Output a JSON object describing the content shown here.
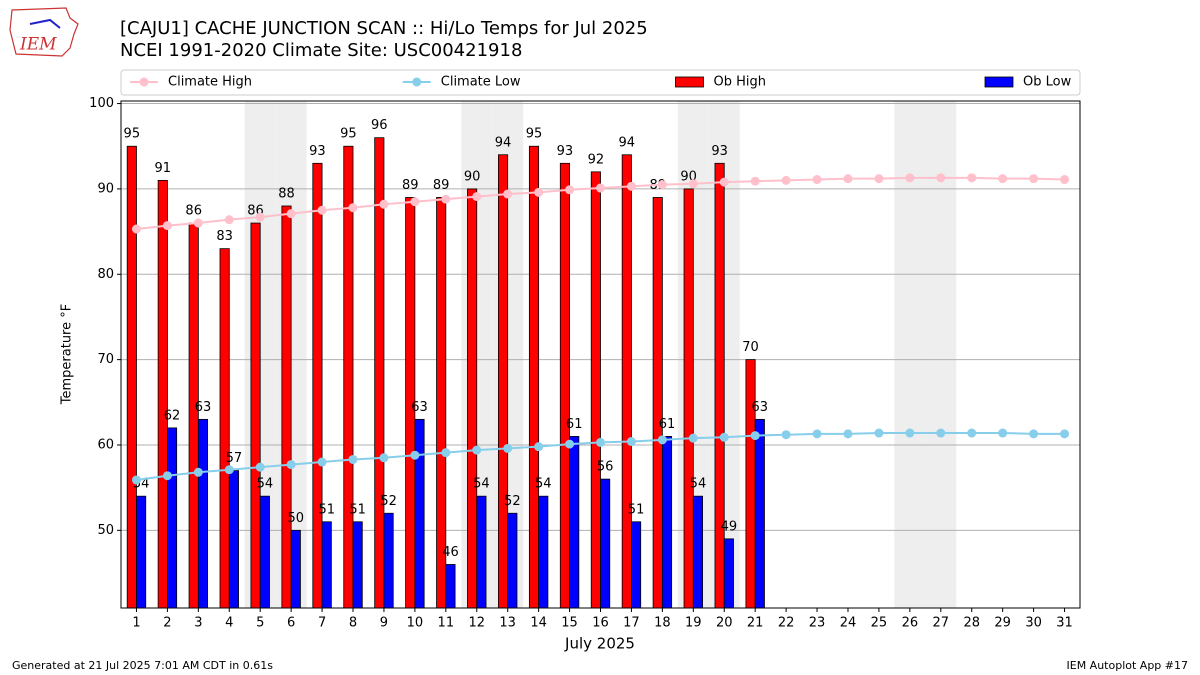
{
  "chart_data": {
    "type": "bar",
    "logo": "IEM",
    "title": "[CAJU1] CACHE JUNCTION SCAN :: Hi/Lo Temps for Jul 2025",
    "subtitle": "NCEI 1991-2020 Climate Site: USC00421918",
    "x_label": "July 2025",
    "y_label": "Temperature °F",
    "footer_left": "Generated at 21 Jul 2025 7:01 AM CDT in 0.61s",
    "footer_right": "IEM Autoplot App #17",
    "categories": [
      "1",
      "2",
      "3",
      "4",
      "5",
      "6",
      "7",
      "8",
      "9",
      "10",
      "11",
      "12",
      "13",
      "14",
      "15",
      "16",
      "17",
      "18",
      "19",
      "20",
      "21",
      "22",
      "23",
      "24",
      "25",
      "26",
      "27",
      "28",
      "29",
      "30",
      "31"
    ],
    "shaded_categories": [
      "5",
      "6",
      "12",
      "13",
      "19",
      "20",
      "26",
      "27"
    ],
    "shade_color": "#eeeeee",
    "ylim": [
      40.9,
      100.3
    ],
    "yticks": [
      50,
      60,
      70,
      80,
      90,
      100
    ],
    "grid": true,
    "legend": "top",
    "series": [
      {
        "name": "Climate High",
        "type": "line",
        "color": "#ffc0cb",
        "values": [
          85.3,
          85.7,
          86.0,
          86.4,
          86.7,
          87.1,
          87.5,
          87.8,
          88.2,
          88.5,
          88.8,
          89.1,
          89.4,
          89.6,
          89.9,
          90.1,
          90.3,
          90.5,
          90.6,
          90.8,
          90.9,
          91.0,
          91.1,
          91.2,
          91.2,
          91.3,
          91.3,
          91.3,
          91.2,
          91.2,
          91.1
        ]
      },
      {
        "name": "Climate Low",
        "type": "line",
        "color": "#87ceeb",
        "values": [
          55.9,
          56.4,
          56.8,
          57.1,
          57.4,
          57.7,
          58.0,
          58.3,
          58.5,
          58.8,
          59.1,
          59.4,
          59.6,
          59.8,
          60.1,
          60.3,
          60.4,
          60.6,
          60.8,
          60.9,
          61.1,
          61.2,
          61.3,
          61.3,
          61.4,
          61.4,
          61.4,
          61.4,
          61.4,
          61.3,
          61.3
        ]
      },
      {
        "name": "Ob High",
        "type": "bar",
        "color": "#ff0000",
        "values": [
          95,
          91,
          86,
          83,
          86,
          88,
          93,
          95,
          96,
          89,
          89,
          90,
          94,
          95,
          93,
          92,
          94,
          89,
          90,
          93,
          70,
          null,
          null,
          null,
          null,
          null,
          null,
          null,
          null,
          null,
          null
        ]
      },
      {
        "name": "Ob Low",
        "type": "bar",
        "color": "#0000ff",
        "values": [
          54,
          62,
          63,
          57,
          54,
          50,
          51,
          51,
          52,
          63,
          46,
          54,
          52,
          54,
          61,
          56,
          51,
          61,
          54,
          49,
          63,
          null,
          null,
          null,
          null,
          null,
          null,
          null,
          null,
          null,
          null
        ]
      }
    ]
  }
}
